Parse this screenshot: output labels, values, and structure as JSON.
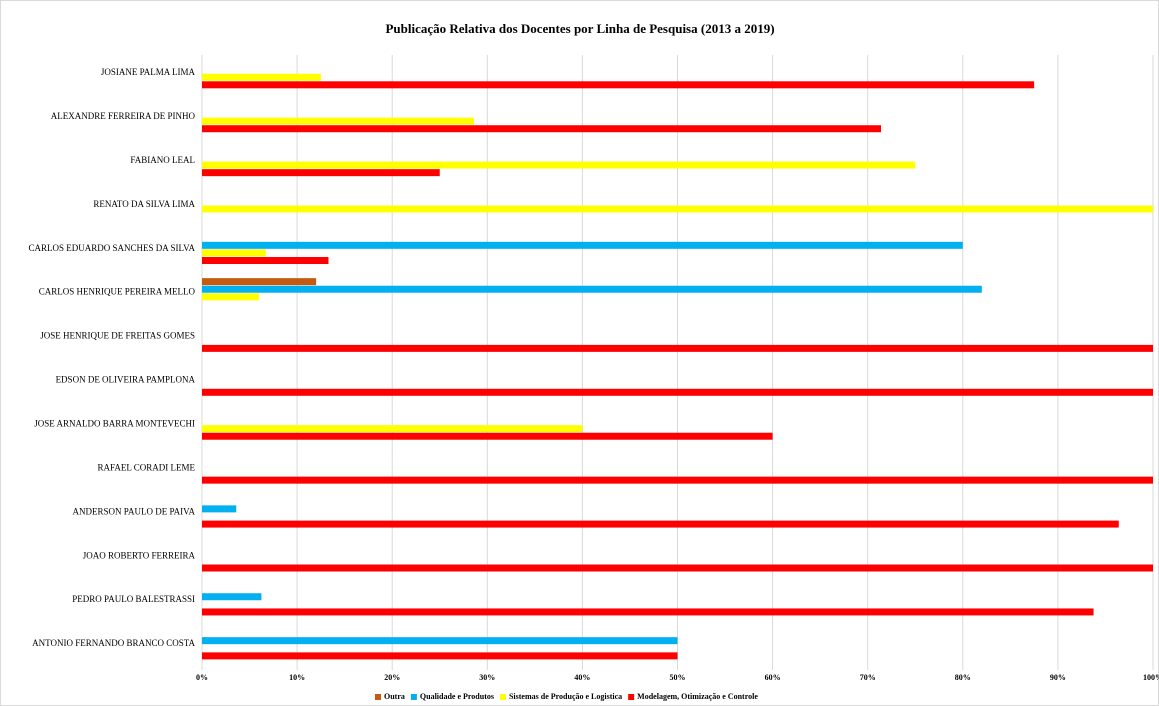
{
  "chart_data": {
    "type": "barh",
    "title": "Publicação Relativa dos Docentes por Linha de Pesquisa (2013 a 2019)",
    "categories": [
      "JOSIANE PALMA LIMA",
      "ALEXANDRE FERREIRA DE PINHO",
      "FABIANO LEAL",
      "RENATO DA SILVA LIMA",
      "CARLOS EDUARDO SANCHES DA SILVA",
      "CARLOS HENRIQUE PEREIRA MELLO",
      "JOSE HENRIQUE DE FREITAS GOMES",
      "EDSON DE OLIVEIRA PAMPLONA",
      "JOSE ARNALDO BARRA MONTEVECHI",
      "RAFAEL CORADI LEME",
      "ANDERSON PAULO DE PAIVA",
      "JOAO ROBERTO FERREIRA",
      "PEDRO PAULO BALESTRASSI",
      "ANTONIO FERNANDO BRANCO COSTA"
    ],
    "series": [
      {
        "name": "Outra",
        "color": "#c55a11",
        "values": [
          0,
          0,
          0,
          0,
          0,
          12,
          0,
          0,
          0,
          0,
          0,
          0,
          0,
          0
        ]
      },
      {
        "name": "Qualidade e Produtos",
        "color": "#00b0f0",
        "values": [
          0,
          0,
          0,
          0,
          80,
          82,
          0,
          0,
          0,
          0,
          3.6,
          0,
          6.25,
          50
        ]
      },
      {
        "name": "Sistemas de Produção e Logistica",
        "color": "#ffff00",
        "values": [
          12.5,
          28.6,
          75,
          100,
          6.7,
          6,
          0,
          0,
          40,
          0,
          0,
          0,
          0,
          0
        ]
      },
      {
        "name": "Modelagem, Otimização e Controle",
        "color": "#ff0000",
        "values": [
          87.5,
          71.4,
          25,
          0,
          13.3,
          0,
          100,
          100,
          60,
          100,
          96.4,
          100,
          93.75,
          50
        ]
      }
    ],
    "xlim": [
      0,
      100
    ],
    "xticks": [
      {
        "value": 0,
        "label": "0%"
      },
      {
        "value": 10,
        "label": "10%"
      },
      {
        "value": 20,
        "label": "20%"
      },
      {
        "value": 30,
        "label": "30%"
      },
      {
        "value": 40,
        "label": "40%"
      },
      {
        "value": 50,
        "label": "50%"
      },
      {
        "value": 60,
        "label": "60%"
      },
      {
        "value": 70,
        "label": "70%"
      },
      {
        "value": 80,
        "label": "80%"
      },
      {
        "value": 90,
        "label": "90%"
      },
      {
        "value": 100,
        "label": "100%"
      }
    ],
    "grid": true,
    "legend": "bottom"
  }
}
